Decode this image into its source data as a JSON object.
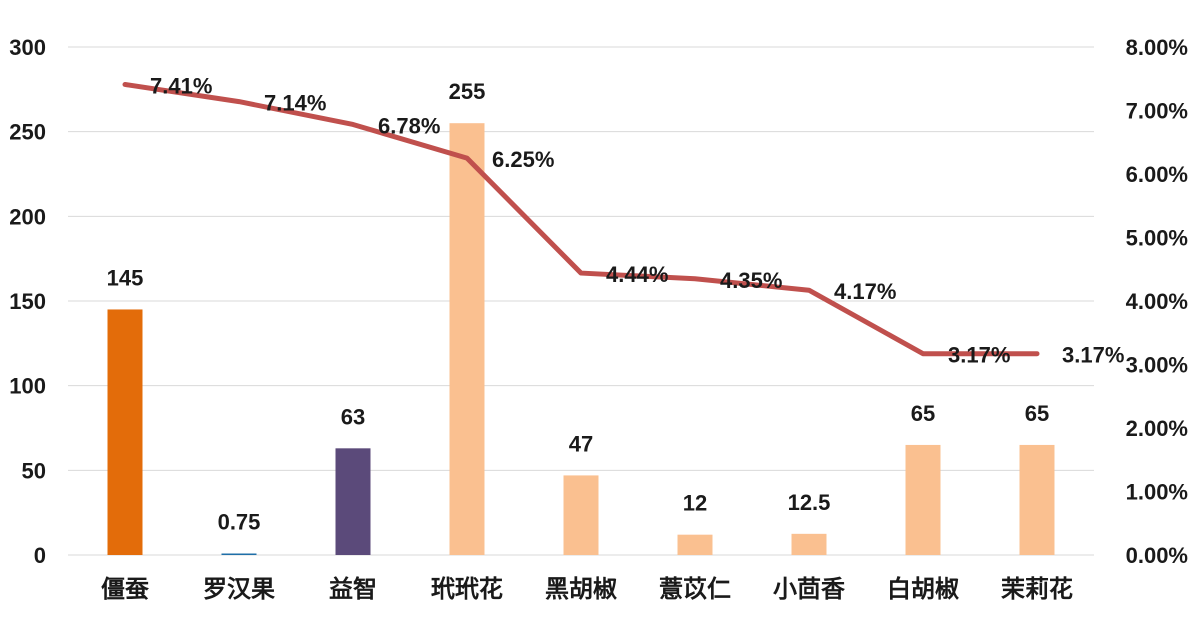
{
  "chart_data": {
    "type": "bar",
    "categories": [
      "僵蚕",
      "罗汉果",
      "益智",
      "玳玳花",
      "黑胡椒",
      "薏苡仁",
      "小茴香",
      "白胡椒",
      "茉莉花"
    ],
    "series": [
      {
        "type": "bar",
        "axis": "left",
        "values": [
          145,
          0.75,
          63,
          255,
          47,
          12,
          12.5,
          65,
          65
        ],
        "value_labels": [
          "145",
          "0.75",
          "63",
          "255",
          "47",
          "12",
          "12.5",
          "65",
          "65"
        ],
        "colors": [
          "#E36C0A",
          "#1F6FA8",
          "#5B4A7A",
          "#FAC090",
          "#FAC090",
          "#FAC090",
          "#FAC090",
          "#FAC090",
          "#FAC090"
        ]
      },
      {
        "type": "line",
        "axis": "right",
        "values": [
          7.41,
          7.14,
          6.78,
          6.25,
          4.44,
          4.35,
          4.17,
          3.17,
          3.17
        ],
        "value_labels": [
          "7.41%",
          "7.14%",
          "6.78%",
          "6.25%",
          "4.44%",
          "4.35%",
          "4.17%",
          "3.17%",
          "3.17%"
        ],
        "color": "#C0504D"
      }
    ],
    "left_axis": {
      "min": 0,
      "max": 300,
      "ticks": [
        "0",
        "50",
        "100",
        "150",
        "200",
        "250",
        "300"
      ]
    },
    "right_axis": {
      "min": 0,
      "max": 8,
      "ticks": [
        "0.00%",
        "1.00%",
        "2.00%",
        "3.00%",
        "4.00%",
        "5.00%",
        "6.00%",
        "7.00%",
        "8.00%"
      ]
    },
    "grid": true,
    "legend": "none"
  }
}
